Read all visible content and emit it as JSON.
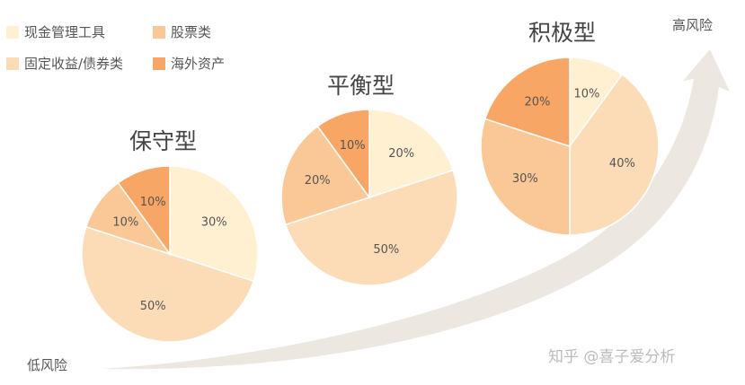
{
  "colors": {
    "cash": "#FFF0D2",
    "stock": "#FAC796",
    "fixed": "#FCDCB6",
    "overseas": "#F7A666",
    "arrow": "#ECE7E0",
    "stroke": "#FFFFFF"
  },
  "legend": [
    {
      "key": "cash",
      "label": "现金管理工具"
    },
    {
      "key": "stock",
      "label": "股票类"
    },
    {
      "key": "fixed",
      "label": "固定收益/债券类"
    },
    {
      "key": "overseas",
      "label": "海外资产"
    }
  ],
  "risk_low": "低风险",
  "risk_high": "高风险",
  "watermark": "知乎 @喜子爱分析",
  "chart_data": [
    {
      "type": "pie",
      "title": "保守型",
      "slices": [
        {
          "key": "cash",
          "value": 30,
          "label": "30%"
        },
        {
          "key": "fixed",
          "value": 50,
          "label": "50%"
        },
        {
          "key": "stock",
          "value": 10,
          "label": "10%"
        },
        {
          "key": "overseas",
          "value": 10,
          "label": "10%"
        }
      ]
    },
    {
      "type": "pie",
      "title": "平衡型",
      "slices": [
        {
          "key": "cash",
          "value": 20,
          "label": "20%"
        },
        {
          "key": "fixed",
          "value": 50,
          "label": "50%"
        },
        {
          "key": "stock",
          "value": 20,
          "label": "20%"
        },
        {
          "key": "overseas",
          "value": 10,
          "label": "10%"
        }
      ]
    },
    {
      "type": "pie",
      "title": "积极型",
      "slices": [
        {
          "key": "cash",
          "value": 10,
          "label": "10%"
        },
        {
          "key": "fixed",
          "value": 40,
          "label": "40%"
        },
        {
          "key": "stock",
          "value": 30,
          "label": "30%"
        },
        {
          "key": "overseas",
          "value": 20,
          "label": "20%"
        }
      ]
    }
  ]
}
